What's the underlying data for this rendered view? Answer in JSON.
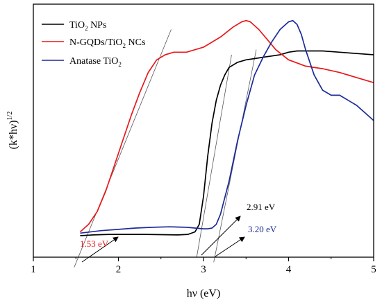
{
  "chart_data": {
    "type": "line",
    "title": "",
    "xlabel": "hν (eV)",
    "ylabel": "(k*hν)^1/2",
    "ylabel_base": "(k*hν)",
    "ylabel_sup": "1/2",
    "xlim": [
      1,
      5
    ],
    "ylim": [
      0,
      1
    ],
    "x_ticks": [
      1,
      2,
      3,
      4,
      5
    ],
    "x_tick_labels": [
      "1",
      "2",
      "3",
      "4",
      "5"
    ],
    "y_ticks_shown": false,
    "grid": false,
    "legend_position": "top-left",
    "series": [
      {
        "name": "TiO2 NPs",
        "name_base": "TiO",
        "name_sub": "2",
        "name_rest": " NPs",
        "color": "#000000",
        "x": [
          1.55,
          1.7,
          1.9,
          2.1,
          2.3,
          2.5,
          2.7,
          2.82,
          2.9,
          2.95,
          3.0,
          3.05,
          3.1,
          3.15,
          3.2,
          3.25,
          3.3,
          3.4,
          3.5,
          3.6,
          3.7,
          3.8,
          3.9,
          4.0,
          4.1,
          4.2,
          4.4,
          4.6,
          4.8,
          5.0
        ],
        "y": [
          0.085,
          0.088,
          0.09,
          0.09,
          0.09,
          0.089,
          0.088,
          0.09,
          0.1,
          0.13,
          0.24,
          0.4,
          0.53,
          0.62,
          0.68,
          0.72,
          0.75,
          0.77,
          0.78,
          0.785,
          0.79,
          0.795,
          0.8,
          0.81,
          0.815,
          0.815,
          0.815,
          0.81,
          0.805,
          0.8
        ]
      },
      {
        "name": "N-GQDs/TiO2 NCs",
        "name_base": "N-GQDs/TiO",
        "name_sub": "2",
        "name_rest": " NCs",
        "color": "#e8191b",
        "x": [
          1.55,
          1.65,
          1.75,
          1.85,
          1.95,
          2.05,
          2.15,
          2.25,
          2.35,
          2.45,
          2.55,
          2.65,
          2.8,
          3.0,
          3.2,
          3.35,
          3.45,
          3.5,
          3.55,
          3.65,
          3.75,
          3.85,
          4.0,
          4.2,
          4.4,
          4.6,
          4.8,
          5.0
        ],
        "y": [
          0.1,
          0.13,
          0.18,
          0.26,
          0.36,
          0.46,
          0.56,
          0.65,
          0.73,
          0.78,
          0.8,
          0.81,
          0.81,
          0.83,
          0.87,
          0.91,
          0.93,
          0.935,
          0.93,
          0.9,
          0.86,
          0.82,
          0.78,
          0.755,
          0.745,
          0.73,
          0.71,
          0.69
        ]
      },
      {
        "name": "Anatase TiO2",
        "name_base": "Anatase TiO",
        "name_sub": "2",
        "name_rest": "",
        "color": "#1c2a9a",
        "x": [
          1.55,
          1.8,
          2.0,
          2.2,
          2.4,
          2.6,
          2.8,
          3.0,
          3.05,
          3.1,
          3.15,
          3.2,
          3.3,
          3.4,
          3.5,
          3.6,
          3.7,
          3.8,
          3.9,
          4.0,
          4.05,
          4.1,
          4.15,
          4.2,
          4.3,
          4.4,
          4.5,
          4.6,
          4.7,
          4.8,
          4.9,
          5.0
        ],
        "y": [
          0.095,
          0.105,
          0.11,
          0.115,
          0.118,
          0.12,
          0.118,
          0.112,
          0.112,
          0.115,
          0.13,
          0.17,
          0.3,
          0.46,
          0.6,
          0.72,
          0.79,
          0.85,
          0.9,
          0.93,
          0.935,
          0.92,
          0.88,
          0.82,
          0.72,
          0.66,
          0.64,
          0.64,
          0.62,
          0.6,
          0.57,
          0.54
        ]
      }
    ],
    "tangents": [
      {
        "x": [
          1.48,
          2.62
        ],
        "y": [
          -0.04,
          0.9
        ],
        "color": "#555555"
      },
      {
        "x": [
          2.92,
          3.33
        ],
        "y": [
          0.0,
          0.8
        ],
        "color": "#555555"
      },
      {
        "x": [
          3.12,
          3.62
        ],
        "y": [
          -0.02,
          0.82
        ],
        "color": "#555555"
      }
    ],
    "annotations": [
      {
        "text": "1.53 eV",
        "color": "#e8191b"
      },
      {
        "text": "2.91 eV",
        "color": "#000000"
      },
      {
        "text": "3.20 eV",
        "color": "#1c2a9a"
      }
    ]
  }
}
